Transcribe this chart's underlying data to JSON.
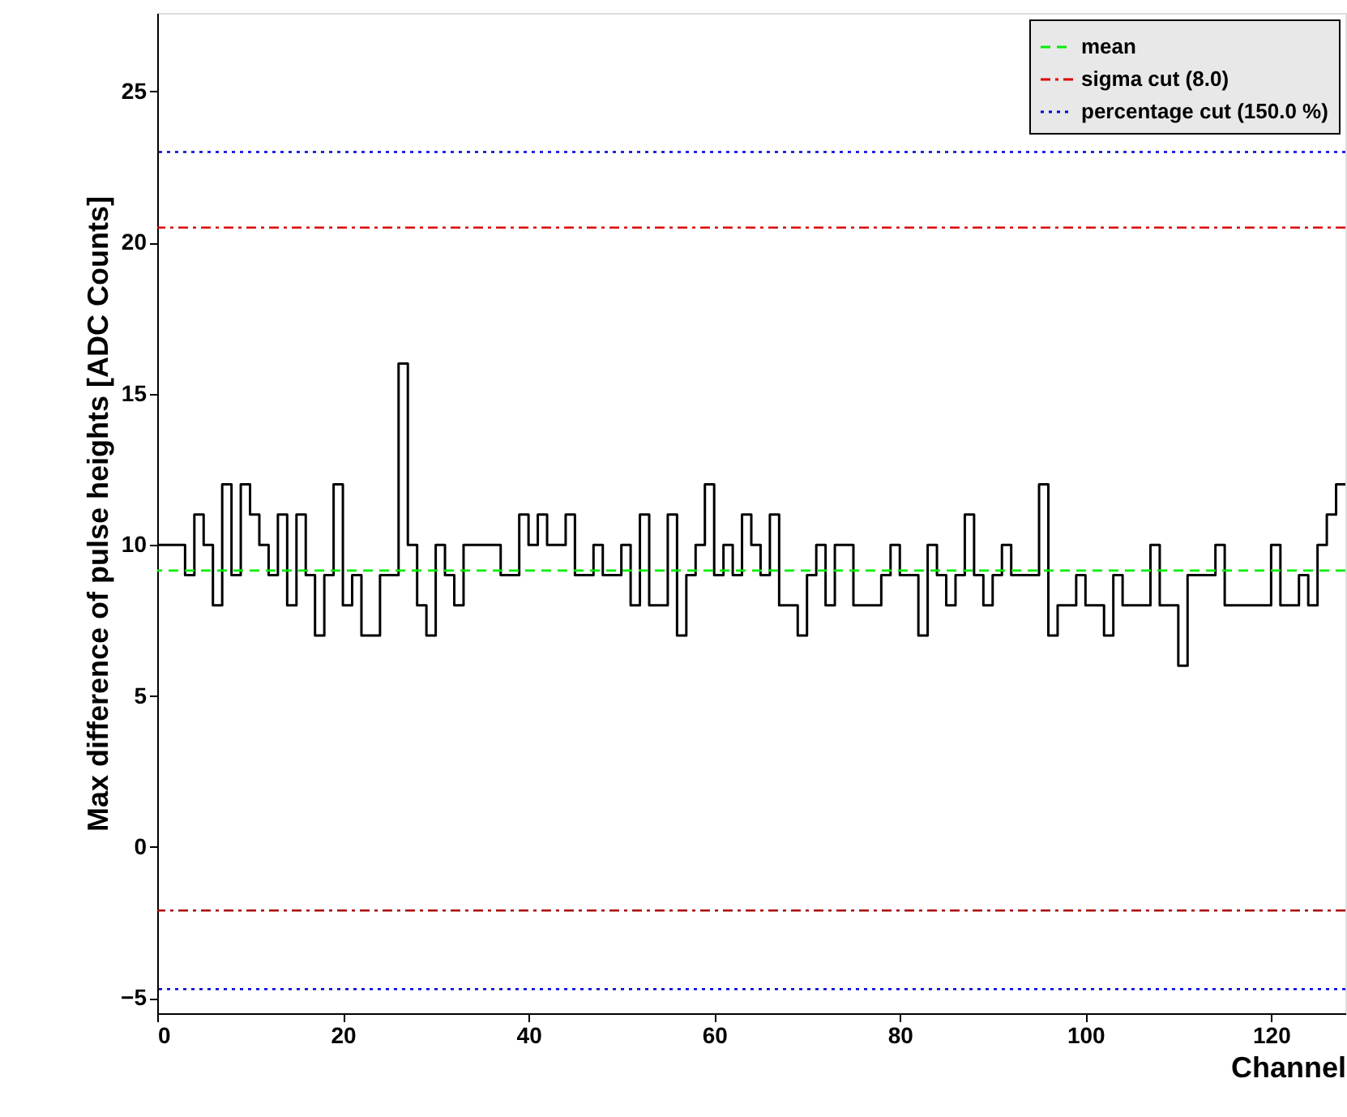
{
  "chart_data": {
    "type": "histogram",
    "xlabel": "Channel",
    "ylabel": "Max difference of pulse heights [ADC Counts]",
    "bins": [
      0,
      1,
      2,
      3,
      4,
      5,
      6,
      7,
      8,
      9,
      10,
      11,
      12,
      13,
      14,
      15,
      16,
      17,
      18,
      19,
      20,
      21,
      22,
      23,
      24,
      25,
      26,
      27,
      28,
      29,
      30,
      31,
      32,
      33,
      34,
      35,
      36,
      37,
      38,
      39,
      40,
      41,
      42,
      43,
      44,
      45,
      46,
      47,
      48,
      49,
      50,
      51,
      52,
      53,
      54,
      55,
      56,
      57,
      58,
      59,
      60,
      61,
      62,
      63,
      64,
      65,
      66,
      67,
      68,
      69,
      70,
      71,
      72,
      73,
      74,
      75,
      76,
      77,
      78,
      79,
      80,
      81,
      82,
      83,
      84,
      85,
      86,
      87,
      88,
      89,
      90,
      91,
      92,
      93,
      94,
      95,
      96,
      97,
      98,
      99,
      100,
      101,
      102,
      103,
      104,
      105,
      106,
      107,
      108,
      109,
      110,
      111,
      112,
      113,
      114,
      115,
      116,
      117,
      118,
      119,
      120,
      121,
      122,
      123,
      124,
      125,
      126,
      127,
      128
    ],
    "values": [
      10,
      10,
      10,
      9,
      11,
      10,
      8,
      12,
      9,
      12,
      11,
      10,
      9,
      11,
      8,
      11,
      9,
      7,
      9,
      12,
      8,
      9,
      7,
      7,
      9,
      9,
      16,
      10,
      8,
      7,
      10,
      9,
      8,
      10,
      10,
      10,
      10,
      9,
      9,
      11,
      10,
      11,
      10,
      10,
      11,
      9,
      9,
      10,
      9,
      9,
      10,
      8,
      11,
      8,
      8,
      11,
      7,
      9,
      10,
      12,
      9,
      10,
      9,
      11,
      10,
      9,
      11,
      8,
      8,
      7,
      9,
      10,
      8,
      10,
      10,
      8,
      8,
      8,
      9,
      10,
      9,
      9,
      7,
      10,
      9,
      8,
      9,
      11,
      9,
      8,
      9,
      10,
      9,
      9,
      9,
      12,
      7,
      8,
      8,
      9,
      8,
      8,
      7,
      9,
      8,
      8,
      8,
      10,
      8,
      8,
      6,
      9,
      9,
      9,
      10,
      8,
      8,
      8,
      8,
      8,
      10,
      8,
      8,
      9,
      8,
      10,
      11,
      12
    ],
    "color": "#000000",
    "xlim": [
      0,
      128
    ],
    "xticks": [
      0,
      20,
      40,
      60,
      80,
      100,
      120
    ],
    "ylim": [
      -5.5,
      27.6
    ],
    "yticks": [
      -5,
      0,
      5,
      10,
      15,
      20,
      25
    ],
    "ref_lines": [
      {
        "axis": "y",
        "value": 9.15,
        "label": "mean",
        "color": "#00ee00",
        "line_style": "dashed"
      },
      {
        "axis": "y",
        "value": 20.5,
        "label": "sigma cut (8.0)",
        "color": "#dd0000",
        "line_style": "dashdot"
      },
      {
        "axis": "y",
        "value": -2.1,
        "color": "#aa0000",
        "line_style": "dashdot"
      },
      {
        "axis": "y",
        "value": 23.0,
        "label": "percentage cut (150.0 %)",
        "color": "#0000dd",
        "line_style": "dotted"
      },
      {
        "axis": "y",
        "value": -4.7,
        "color": "#0000dd",
        "line_style": "dotted"
      }
    ],
    "legend": "top right",
    "grid": false
  }
}
